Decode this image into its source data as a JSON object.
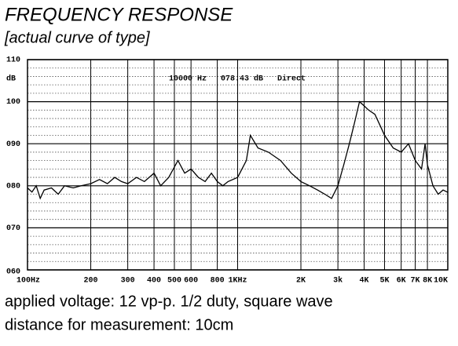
{
  "chart_data": {
    "type": "line",
    "title": "FREQUENCY RESPONSE",
    "subtitle": "[actual curve of type]",
    "ylabel": "dB",
    "annotation": "10000 Hz   078.43 dB   Direct",
    "notes": [
      "applied voltage: 12 vp-p. 1/2 duty, square wave",
      "distance for measurement: 10cm"
    ],
    "xscale": "log",
    "grid": true,
    "xlim": [
      100,
      10000
    ],
    "ylim": [
      60,
      110
    ],
    "yticks": [
      {
        "value": 60,
        "label": "060"
      },
      {
        "value": 70,
        "label": "070"
      },
      {
        "value": 80,
        "label": "080"
      },
      {
        "value": 90,
        "label": "090"
      },
      100,
      110
    ],
    "yminorticks": [
      62,
      64,
      66,
      68,
      72,
      74,
      76,
      78,
      82,
      84,
      86,
      88,
      92,
      94,
      96,
      98,
      102,
      104,
      106,
      108
    ],
    "xticks": [
      {
        "value": 100,
        "label": "100Hz"
      },
      200,
      300,
      400,
      500,
      600,
      800,
      {
        "value": 1000,
        "label": "1KHz"
      },
      {
        "value": 2000,
        "label": "2K"
      },
      {
        "value": 3000,
        "label": "3k"
      },
      {
        "value": 4000,
        "label": "4K"
      },
      {
        "value": 5000,
        "label": "5K"
      },
      {
        "value": 6000,
        "label": "6K"
      },
      {
        "value": 7000,
        "label": "7K"
      },
      {
        "value": 8000,
        "label": "8K"
      },
      {
        "value": 10000,
        "label": "10K"
      }
    ],
    "series": [
      {
        "color": "#000000",
        "x": [
          100,
          105,
          110,
          115,
          120,
          130,
          140,
          150,
          165,
          180,
          200,
          220,
          240,
          260,
          280,
          300,
          330,
          360,
          400,
          430,
          470,
          520,
          560,
          600,
          650,
          700,
          750,
          800,
          850,
          900,
          1000,
          1100,
          1150,
          1250,
          1400,
          1600,
          1800,
          2000,
          2200,
          2400,
          2600,
          2800,
          3000,
          3200,
          3400,
          3600,
          3800,
          4000,
          4200,
          4500,
          4800,
          5000,
          5500,
          6000,
          6500,
          7000,
          7500,
          7800,
          8000,
          8500,
          9000,
          9500,
          10000
        ],
        "values": [
          79.5,
          78.5,
          80,
          77,
          79,
          79.5,
          78,
          80,
          79.5,
          80,
          80.5,
          81.5,
          80.5,
          82,
          81,
          80.5,
          82,
          81,
          83,
          80,
          82,
          86,
          83,
          84,
          82,
          81,
          83,
          81,
          80,
          81,
          82,
          86,
          92,
          89,
          88,
          86,
          83,
          81,
          80,
          79,
          78,
          77,
          80,
          85,
          90,
          95,
          100,
          99,
          98,
          97,
          94,
          92,
          89,
          88,
          90,
          86,
          84,
          90,
          85,
          80,
          78,
          79,
          78.43
        ]
      }
    ]
  }
}
